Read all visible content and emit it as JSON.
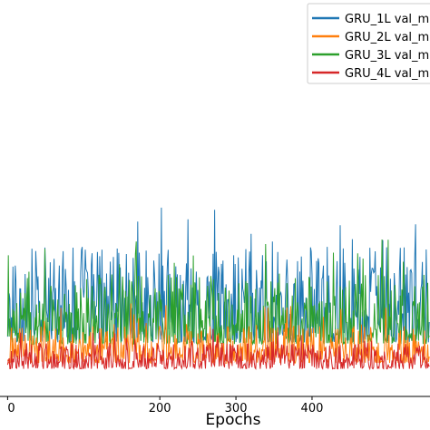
{
  "chart_data": {
    "type": "line",
    "xlabel": "Epochs",
    "ylabel": "",
    "xlim": [
      -10,
      555
    ],
    "ylim": [
      0,
      1.0
    ],
    "x_ticks": [
      "0",
      "200",
      "300",
      "400"
    ],
    "x_tick_values": [
      0,
      200,
      300,
      400
    ],
    "legend_position": "top-right",
    "grid": false,
    "series": [
      {
        "name": "GRU_1L val_m",
        "color": "#1f77b4"
      },
      {
        "name": "GRU_2L val_m",
        "color": "#ff7f0e"
      },
      {
        "name": "GRU_3L val_m",
        "color": "#2ca02c"
      },
      {
        "name": "GRU_4L val_m",
        "color": "#d62728"
      }
    ],
    "series_baselines": [
      0.175,
      0.1,
      0.16,
      0.08
    ],
    "series_noise": [
      0.11,
      0.045,
      0.08,
      0.03
    ],
    "spike_points": [
      {
        "series": 0,
        "x": 320,
        "y": 0.41
      },
      {
        "series": 0,
        "x": 210,
        "y": 0.34
      },
      {
        "series": 0,
        "x": 270,
        "y": 0.36
      },
      {
        "series": 0,
        "x": 415,
        "y": 0.33
      },
      {
        "series": 0,
        "x": 10,
        "y": 0.33
      },
      {
        "series": 2,
        "x": 420,
        "y": 0.29
      },
      {
        "series": 2,
        "x": 215,
        "y": 0.3
      }
    ],
    "num_epochs": 555
  }
}
